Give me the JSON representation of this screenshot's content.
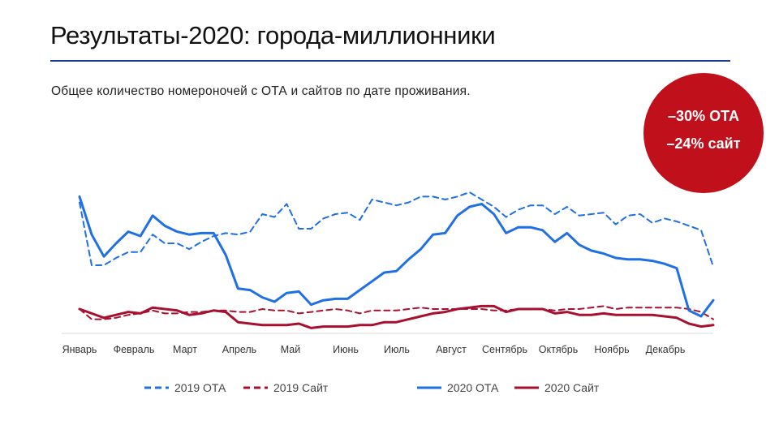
{
  "header": {
    "title": "Результаты-2020: города-миллионники",
    "subtitle": "Общее количество номероночей с ОТА и сайтов по дате проживания."
  },
  "badge": {
    "line1": "–30% ОТА",
    "line2": "–24% сайт",
    "color": "#c0101c"
  },
  "chart_data": {
    "type": "line",
    "title": "",
    "xlabel": "",
    "ylabel": "",
    "ylim": [
      0,
      100
    ],
    "grid": false,
    "legend_position": "bottom",
    "x_tick_labels": [
      "Январь",
      "Февраль",
      "Март",
      "Апрель",
      "Май",
      "Июнь",
      "Июль",
      "Август",
      "Сентябрь",
      "Октябрь",
      "Ноябрь",
      "Декабрь"
    ],
    "weeks": 53,
    "series": [
      {
        "name": "2019 ОТА",
        "color": "#1f6fe5",
        "style": "dashed",
        "values": [
          88,
          45,
          45,
          50,
          54,
          54,
          66,
          60,
          60,
          56,
          61,
          65,
          67,
          66,
          68,
          80,
          78,
          87,
          70,
          70,
          77,
          80,
          81,
          76,
          90,
          88,
          86,
          88,
          92,
          92,
          90,
          92,
          95,
          90,
          85,
          78,
          83,
          86,
          86,
          80,
          85,
          79,
          80,
          81,
          73,
          79,
          80,
          74,
          77,
          75,
          72,
          69,
          44
        ]
      },
      {
        "name": "2019 Сайт",
        "color": "#a8102f",
        "style": "dashed",
        "values": [
          15,
          8,
          8,
          9,
          11,
          12,
          14,
          12,
          12,
          13,
          13,
          14,
          14,
          13,
          13,
          15,
          14,
          14,
          12,
          13,
          14,
          15,
          14,
          12,
          14,
          14,
          14,
          15,
          16,
          15,
          15,
          15,
          15,
          15,
          14,
          14,
          15,
          15,
          15,
          14,
          15,
          15,
          16,
          17,
          15,
          16,
          16,
          16,
          16,
          16,
          15,
          13,
          8
        ]
      },
      {
        "name": "2020 ОТА",
        "color": "#1f6fe5",
        "style": "solid",
        "values": [
          92,
          66,
          51,
          60,
          68,
          65,
          79,
          72,
          68,
          66,
          67,
          67,
          52,
          29,
          28,
          23,
          20,
          26,
          27,
          18,
          21,
          22,
          22,
          28,
          34,
          40,
          41,
          49,
          56,
          66,
          67,
          79,
          85,
          87,
          80,
          67,
          71,
          71,
          69,
          61,
          67,
          59,
          55,
          53,
          50,
          49,
          49,
          48,
          46,
          43,
          14,
          10,
          21
        ]
      },
      {
        "name": "2020 Сайт",
        "color": "#a8102f",
        "style": "solid",
        "values": [
          15,
          12,
          9,
          11,
          13,
          12,
          16,
          15,
          14,
          11,
          12,
          14,
          13,
          6,
          5,
          4,
          4,
          4,
          5,
          2,
          3,
          3,
          3,
          4,
          4,
          6,
          6,
          8,
          10,
          12,
          13,
          15,
          16,
          17,
          17,
          13,
          15,
          15,
          15,
          12,
          13,
          11,
          11,
          12,
          11,
          11,
          11,
          11,
          10,
          9,
          5,
          3,
          4
        ]
      }
    ]
  }
}
